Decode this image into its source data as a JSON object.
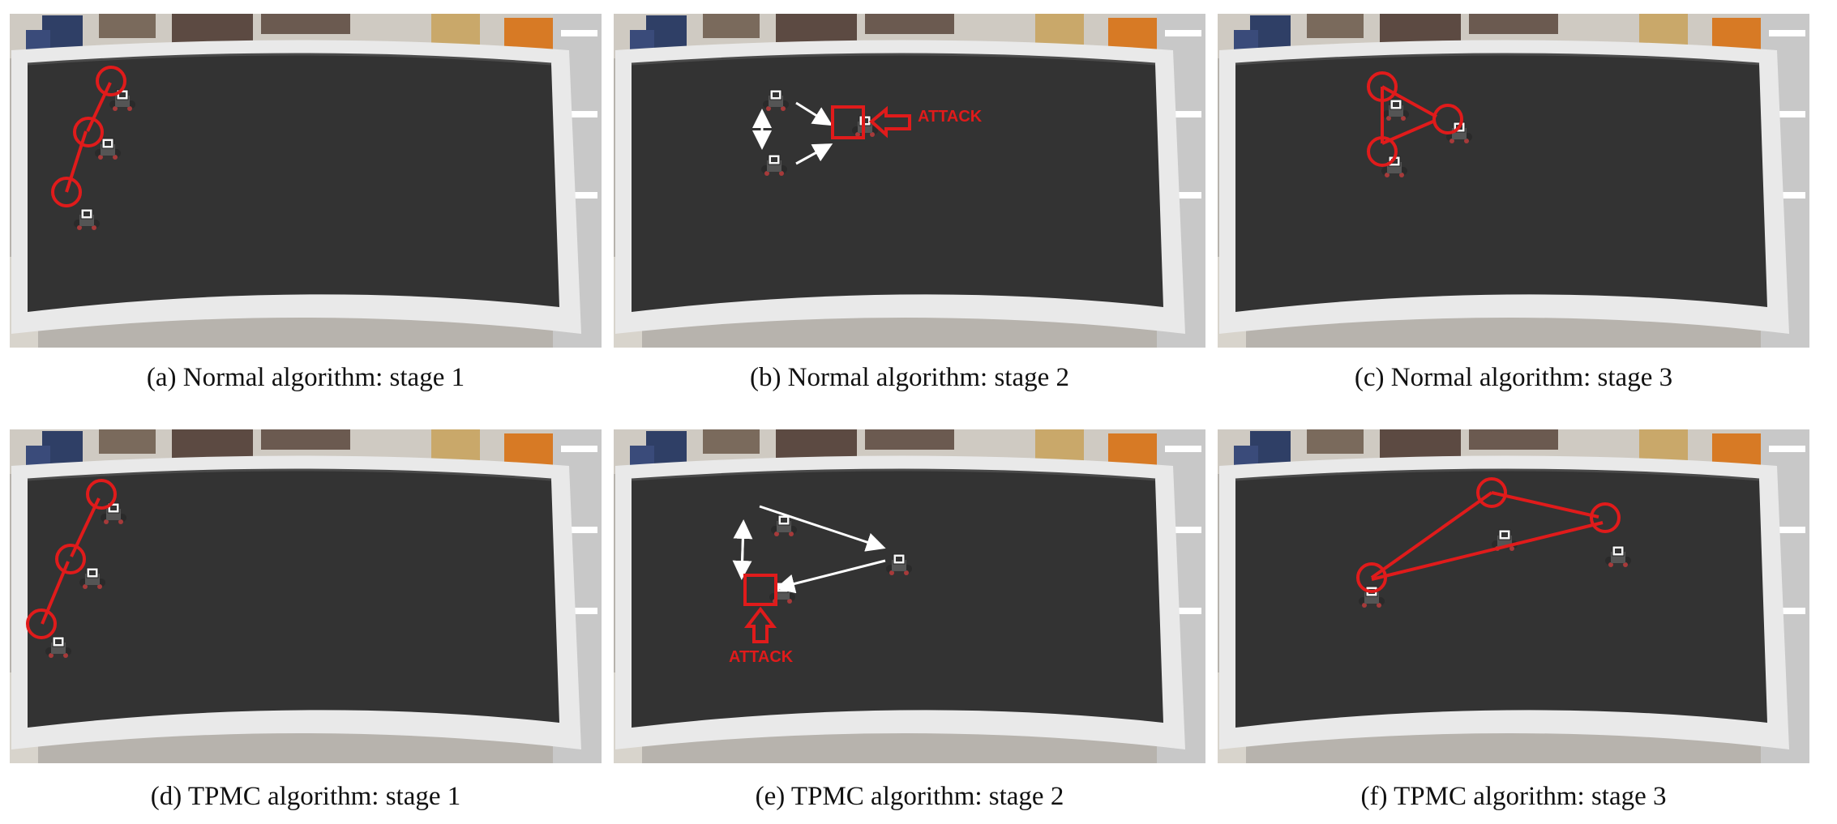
{
  "figure": {
    "panels": [
      {
        "id": "a",
        "caption": "(a) Normal algorithm: stage 1"
      },
      {
        "id": "b",
        "caption": "(b) Normal algorithm: stage 2",
        "annotation": "ATTACK"
      },
      {
        "id": "c",
        "caption": "(c) Normal algorithm: stage 3"
      },
      {
        "id": "d",
        "caption": "(d) TPMC algorithm: stage 1"
      },
      {
        "id": "e",
        "caption": "(e) TPMC algorithm: stage 2",
        "annotation": "ATTACK"
      },
      {
        "id": "f",
        "caption": "(f) TPMC algorithm: stage 3"
      }
    ],
    "colors": {
      "arena_floor": "#333333",
      "arena_border": "#e6e6e6",
      "highlight": "#e01b1b",
      "arrow": "#ffffff"
    }
  }
}
